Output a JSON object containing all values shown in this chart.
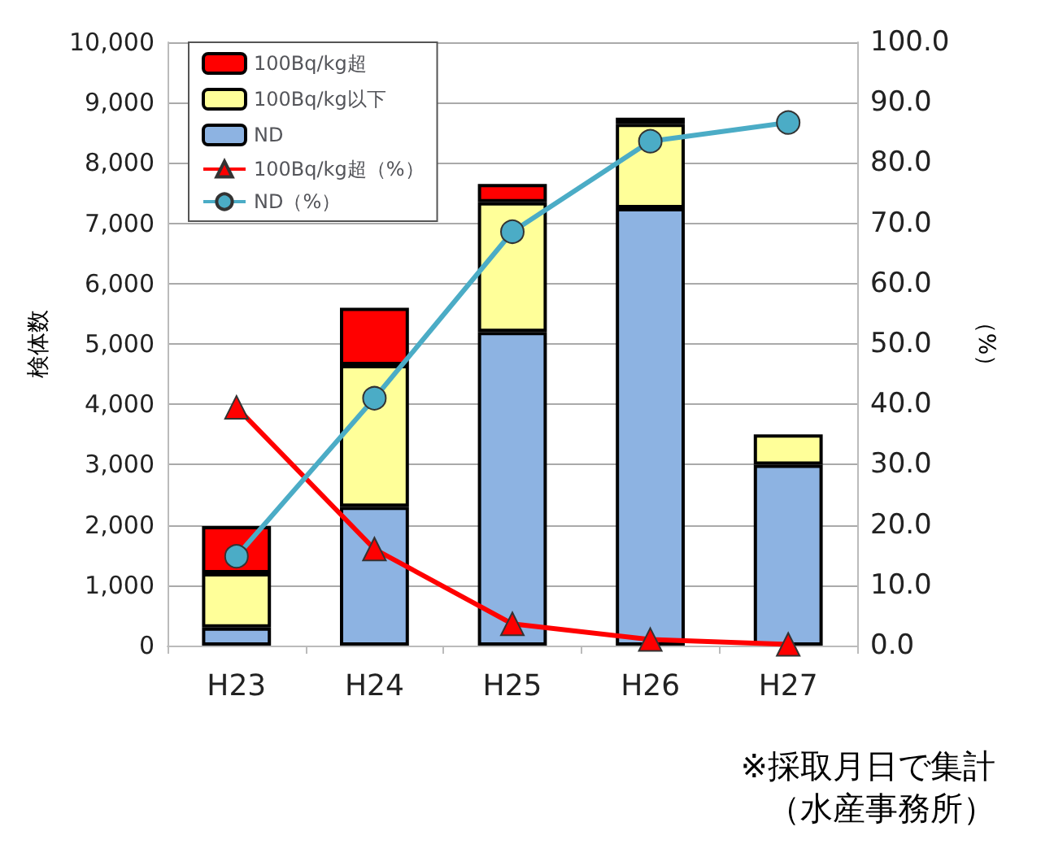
{
  "chart_data": {
    "type": "bar",
    "stacked": true,
    "categories": [
      "H23",
      "H24",
      "H25",
      "H26",
      "H27"
    ],
    "series": [
      {
        "name": "ND",
        "color": "#8db3e2",
        "values": [
          300,
          2300,
          5200,
          7250,
          3000
        ]
      },
      {
        "name": "100Bq/kg以下",
        "color": "#ffff99",
        "values": [
          900,
          2350,
          2150,
          1400,
          500
        ]
      },
      {
        "name": "100Bq/kg超",
        "color": "#ff0000",
        "values": [
          780,
          950,
          300,
          100,
          null
        ]
      },
      {
        "name": "100Bq/kg超（%）",
        "type": "line",
        "axis": "y2",
        "marker": "triangle",
        "color": "#ff0000",
        "values": [
          39.5,
          16,
          3.6,
          1,
          0.2
        ]
      },
      {
        "name": "ND（%）",
        "type": "line",
        "axis": "y2",
        "marker": "circle",
        "color": "#4bacc6",
        "values": [
          14.8,
          41,
          68.6,
          83.6,
          86.7
        ]
      }
    ],
    "ylabel": "検体数",
    "y2label": "（%）",
    "ylim": [
      0,
      10000
    ],
    "yticks": [
      0,
      {
        "value": 1000,
        "label": "1,000"
      },
      {
        "value": 2000,
        "label": "2,000"
      },
      {
        "value": 3000,
        "label": "3,000"
      },
      {
        "value": 4000,
        "label": "4,000"
      },
      {
        "value": 5000,
        "label": "5,000"
      },
      {
        "value": 6000,
        "label": "6,000"
      },
      {
        "value": 7000,
        "label": "7,000"
      },
      {
        "value": 8000,
        "label": "8,000"
      },
      {
        "value": 9000,
        "label": "9,000"
      },
      {
        "value": 10000,
        "label": "10,000"
      }
    ],
    "y2lim": [
      0,
      100
    ],
    "y2ticks": [
      {
        "value": 0,
        "label": "0.0"
      },
      {
        "value": 10,
        "label": "10.0"
      },
      {
        "value": 20,
        "label": "20.0"
      },
      {
        "value": 30,
        "label": "30.0"
      },
      {
        "value": 40,
        "label": "40.0"
      },
      {
        "value": 50,
        "label": "50.0"
      },
      {
        "value": 60,
        "label": "60.0"
      },
      {
        "value": 70,
        "label": "70.0"
      },
      {
        "value": 80,
        "label": "80.0"
      },
      {
        "value": 90,
        "label": "90.0"
      },
      {
        "value": 100,
        "label": "100.0"
      }
    ],
    "grid": "y",
    "legend": "top left",
    "annotations": [
      "※採取月日で集計",
      "（水産事務所）"
    ]
  }
}
